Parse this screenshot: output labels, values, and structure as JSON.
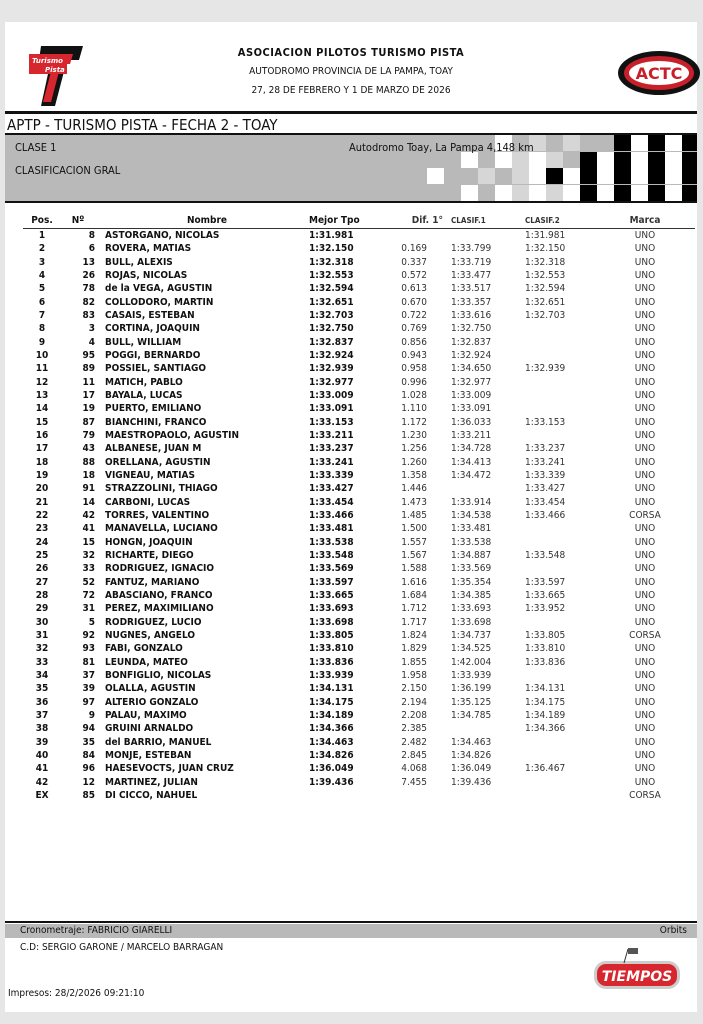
{
  "header": {
    "organization": "ASOCIACION PILOTOS TURISMO PISTA",
    "venue": "AUTODROMO PROVINCIA DE LA PAMPA, TOAY",
    "dates": "27, 28 DE FEBRERO Y 1 DE MARZO DE 2026",
    "logo_left_text": [
      "Turismo",
      "Pista"
    ],
    "logo_right_text": "ACTC"
  },
  "event": {
    "title": "APTP - TURISMO PISTA - FECHA 2 - TOAY",
    "class": "CLASE 1",
    "session": "CLASIFICACION GRAL",
    "track": "Autodromo Toay, La Pampa 4,148 km"
  },
  "table": {
    "headers": [
      "Pos.",
      "Nº",
      "Nombre",
      "Mejor Tpo",
      "Dif. 1°",
      "CLASIF.1",
      "CLASIF.2",
      "Marca"
    ],
    "rows": [
      [
        "1",
        "8",
        "ASTORGANO, NICOLAS",
        "1:31.981",
        "",
        "",
        "1:31.981",
        "UNO"
      ],
      [
        "2",
        "6",
        "ROVERA, MATIAS",
        "1:32.150",
        "0.169",
        "1:33.799",
        "1:32.150",
        "UNO"
      ],
      [
        "3",
        "13",
        "BULL, ALEXIS",
        "1:32.318",
        "0.337",
        "1:33.719",
        "1:32.318",
        "UNO"
      ],
      [
        "4",
        "26",
        "ROJAS, NICOLAS",
        "1:32.553",
        "0.572",
        "1:33.477",
        "1:32.553",
        "UNO"
      ],
      [
        "5",
        "78",
        "de la VEGA, AGUSTIN",
        "1:32.594",
        "0.613",
        "1:33.517",
        "1:32.594",
        "UNO"
      ],
      [
        "6",
        "82",
        "COLLODORO, MARTIN",
        "1:32.651",
        "0.670",
        "1:33.357",
        "1:32.651",
        "UNO"
      ],
      [
        "7",
        "83",
        "CASAIS, ESTEBAN",
        "1:32.703",
        "0.722",
        "1:33.616",
        "1:32.703",
        "UNO"
      ],
      [
        "8",
        "3",
        "CORTINA, JOAQUIN",
        "1:32.750",
        "0.769",
        "1:32.750",
        "",
        "UNO"
      ],
      [
        "9",
        "4",
        "BULL, WILLIAM",
        "1:32.837",
        "0.856",
        "1:32.837",
        "",
        "UNO"
      ],
      [
        "10",
        "95",
        "POGGI, BERNARDO",
        "1:32.924",
        "0.943",
        "1:32.924",
        "",
        "UNO"
      ],
      [
        "11",
        "89",
        "POSSIEL, SANTIAGO",
        "1:32.939",
        "0.958",
        "1:34.650",
        "1:32.939",
        "UNO"
      ],
      [
        "12",
        "11",
        "MATICH, PABLO",
        "1:32.977",
        "0.996",
        "1:32.977",
        "",
        "UNO"
      ],
      [
        "13",
        "17",
        "BAYALA, LUCAS",
        "1:33.009",
        "1.028",
        "1:33.009",
        "",
        "UNO"
      ],
      [
        "14",
        "19",
        "PUERTO, EMILIANO",
        "1:33.091",
        "1.110",
        "1:33.091",
        "",
        "UNO"
      ],
      [
        "15",
        "87",
        "BIANCHINI, FRANCO",
        "1:33.153",
        "1.172",
        "1:36.033",
        "1:33.153",
        "UNO"
      ],
      [
        "16",
        "79",
        "MAESTROPAOLO, AGUSTIN",
        "1:33.211",
        "1.230",
        "1:33.211",
        "",
        "UNO"
      ],
      [
        "17",
        "43",
        "ALBANESE, JUAN M",
        "1:33.237",
        "1.256",
        "1:34.728",
        "1:33.237",
        "UNO"
      ],
      [
        "18",
        "88",
        "ORELLANA, AGUSTIN",
        "1:33.241",
        "1.260",
        "1:34.413",
        "1:33.241",
        "UNO"
      ],
      [
        "19",
        "18",
        "VIGNEAU, MATIAS",
        "1:33.339",
        "1.358",
        "1:34.472",
        "1:33.339",
        "UNO"
      ],
      [
        "20",
        "91",
        "STRAZZOLINI, THIAGO",
        "1:33.427",
        "1.446",
        "",
        "1:33.427",
        "UNO"
      ],
      [
        "21",
        "14",
        "CARBONI, LUCAS",
        "1:33.454",
        "1.473",
        "1:33.914",
        "1:33.454",
        "UNO"
      ],
      [
        "22",
        "42",
        "TORRES, VALENTINO",
        "1:33.466",
        "1.485",
        "1:34.538",
        "1:33.466",
        "CORSA"
      ],
      [
        "23",
        "41",
        "MANAVELLA, LUCIANO",
        "1:33.481",
        "1.500",
        "1:33.481",
        "",
        "UNO"
      ],
      [
        "24",
        "15",
        "HONGN, JOAQUIN",
        "1:33.538",
        "1.557",
        "1:33.538",
        "",
        "UNO"
      ],
      [
        "25",
        "32",
        "RICHARTE, DIEGO",
        "1:33.548",
        "1.567",
        "1:34.887",
        "1:33.548",
        "UNO"
      ],
      [
        "26",
        "33",
        "RODRIGUEZ, IGNACIO",
        "1:33.569",
        "1.588",
        "1:33.569",
        "",
        "UNO"
      ],
      [
        "27",
        "52",
        "FANTUZ, MARIANO",
        "1:33.597",
        "1.616",
        "1:35.354",
        "1:33.597",
        "UNO"
      ],
      [
        "28",
        "72",
        "ABASCIANO, FRANCO",
        "1:33.665",
        "1.684",
        "1:34.385",
        "1:33.665",
        "UNO"
      ],
      [
        "29",
        "31",
        "PEREZ, MAXIMILIANO",
        "1:33.693",
        "1.712",
        "1:33.693",
        "1:33.952",
        "UNO"
      ],
      [
        "30",
        "5",
        "RODRIGUEZ, LUCIO",
        "1:33.698",
        "1.717",
        "1:33.698",
        "",
        "UNO"
      ],
      [
        "31",
        "92",
        "NUGNES, ANGELO",
        "1:33.805",
        "1.824",
        "1:34.737",
        "1:33.805",
        "CORSA"
      ],
      [
        "32",
        "93",
        "FABI, GONZALO",
        "1:33.810",
        "1.829",
        "1:34.525",
        "1:33.810",
        "UNO"
      ],
      [
        "33",
        "81",
        "LEUNDA, MATEO",
        "1:33.836",
        "1.855",
        "1:42.004",
        "1:33.836",
        "UNO"
      ],
      [
        "34",
        "37",
        "BONFIGLIO, NICOLAS",
        "1:33.939",
        "1.958",
        "1:33.939",
        "",
        "UNO"
      ],
      [
        "35",
        "39",
        "OLALLA, AGUSTIN",
        "1:34.131",
        "2.150",
        "1:36.199",
        "1:34.131",
        "UNO"
      ],
      [
        "36",
        "97",
        "ALTERIO GONZALO",
        "1:34.175",
        "2.194",
        "1:35.125",
        "1:34.175",
        "UNO"
      ],
      [
        "37",
        "9",
        "PALAU, MAXIMO",
        "1:34.189",
        "2.208",
        "1:34.785",
        "1:34.189",
        "UNO"
      ],
      [
        "38",
        "94",
        "GRUINI ARNALDO",
        "1:34.366",
        "2.385",
        "",
        "1:34.366",
        "UNO"
      ],
      [
        "39",
        "35",
        "del  BARRIO, MANUEL",
        "1:34.463",
        "2.482",
        "1:34.463",
        "",
        "UNO"
      ],
      [
        "40",
        "84",
        "MONJE, ESTEBAN",
        "1:34.826",
        "2.845",
        "1:34.826",
        "",
        "UNO"
      ],
      [
        "41",
        "96",
        "HAESEVOCTS, JUAN CRUZ",
        "1:36.049",
        "4.068",
        "1:36.049",
        "1:36.467",
        "UNO"
      ],
      [
        "42",
        "12",
        "MARTINEZ, JULIAN",
        "1:39.436",
        "7.455",
        "1:39.436",
        "",
        "UNO"
      ],
      [
        "EX",
        "85",
        "DI CICCO, NAHUEL",
        "",
        "",
        "",
        "",
        "CORSA"
      ]
    ]
  },
  "footer": {
    "timing": "Cronometraje: FABRICIO GIARELLI",
    "system": "Orbits",
    "officials": "C.D: SERGIO GARONE / MARCELO BARRAGAN",
    "printed": "Impresos: 28/2/2026 09:21:10",
    "logo_text": "TIEMPOS"
  },
  "colors": {
    "band": "#b9b9b9",
    "logo_red": "#d7262e",
    "logo_black": "#111111"
  }
}
